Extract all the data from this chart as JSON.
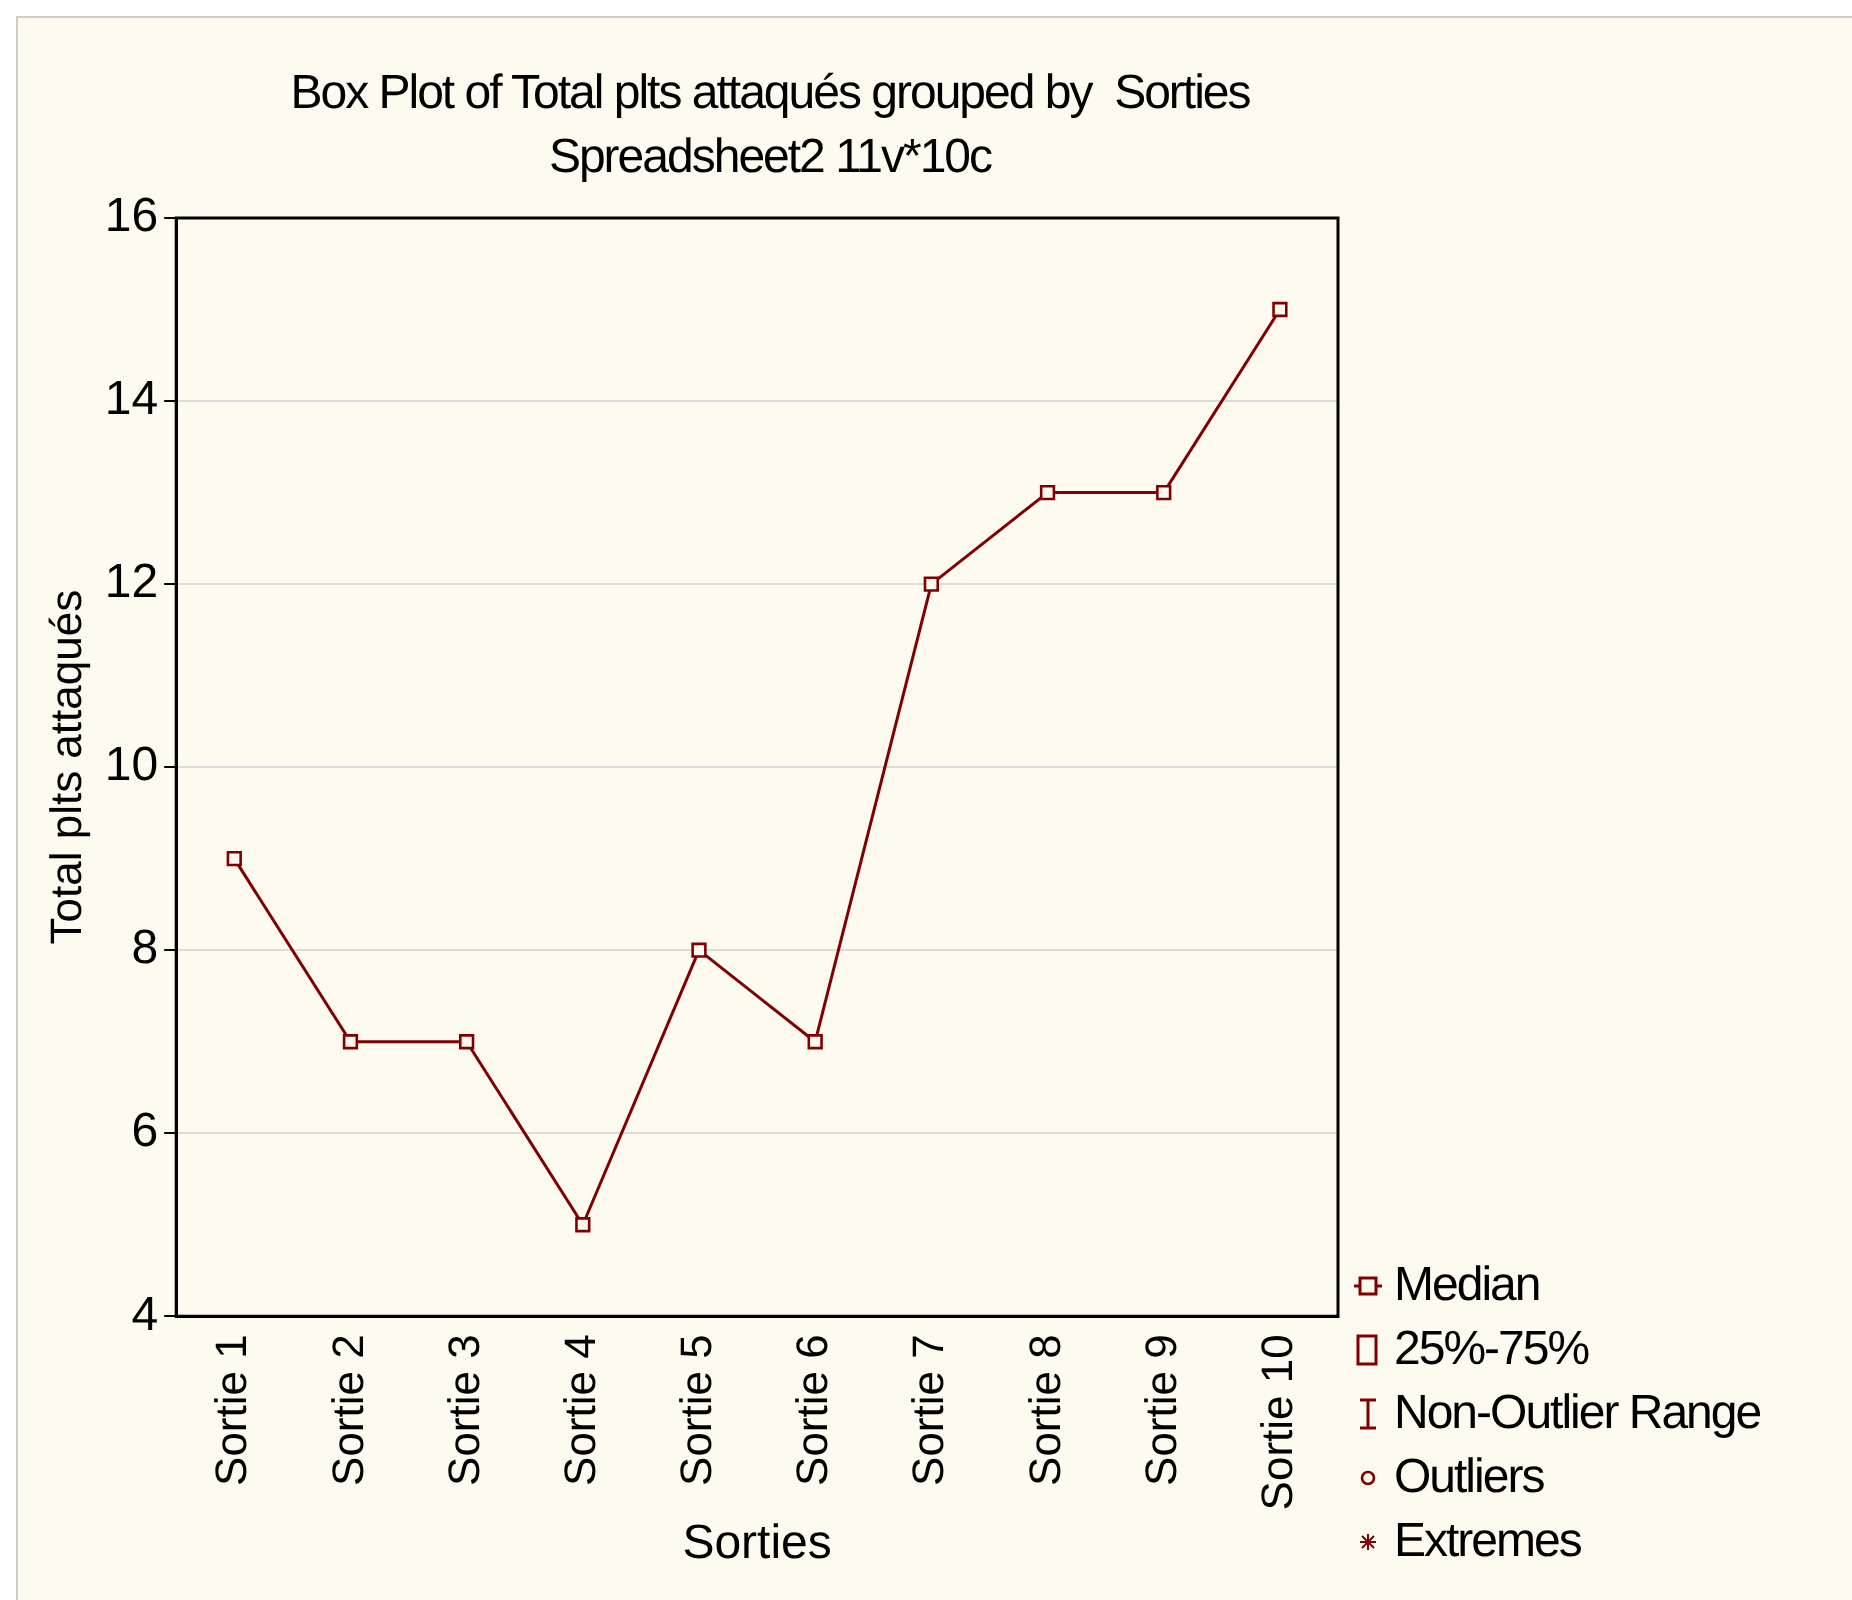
{
  "chart_data": {
    "type": "line",
    "title": "Box Plot of Total plts attaqués grouped by  Sorties",
    "subtitle": "Spreadsheet2 11v*10c",
    "xlabel": "Sorties",
    "ylabel": "Total plts attaqués",
    "categories": [
      "Sortie 1",
      "Sortie 2",
      "Sortie 3",
      "Sortie 4",
      "Sortie 5",
      "Sortie 6",
      "Sortie 7",
      "Sortie 8",
      "Sortie 9",
      "Sortie 10"
    ],
    "series": [
      {
        "name": "Median",
        "color": "#800000",
        "values": [
          9,
          7,
          7,
          5,
          8,
          7,
          12,
          13,
          13,
          15
        ]
      }
    ],
    "ylim": [
      4,
      16
    ],
    "yticks": [
      4,
      6,
      8,
      10,
      12,
      14,
      16
    ],
    "grid": "y",
    "marker": "square",
    "line_style": "solid",
    "legend": "bottom right",
    "annotations": [
      "25%-75%",
      "Non-Outlier Range",
      "Outliers",
      "Extremes"
    ]
  }
}
